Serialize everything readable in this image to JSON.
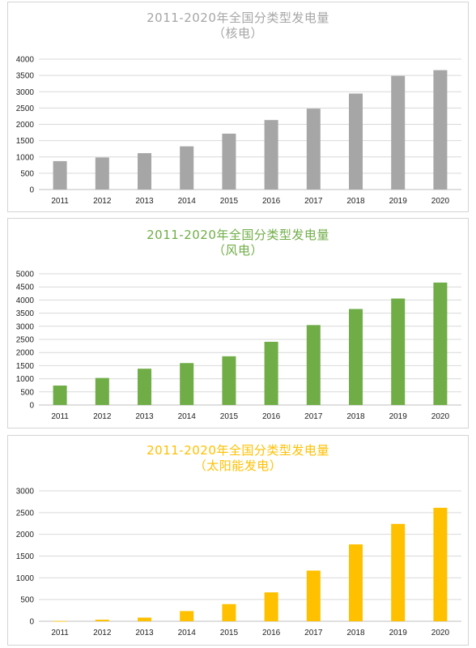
{
  "chart_data": [
    {
      "type": "bar",
      "title": "2011-2020年全国分类型发电量",
      "subtitle": "（核电）",
      "color": "#a6a6a6",
      "title_color": "#a6a6a6",
      "categories": [
        "2011",
        "2012",
        "2013",
        "2014",
        "2015",
        "2016",
        "2017",
        "2018",
        "2019",
        "2020"
      ],
      "values": [
        872,
        983,
        1116,
        1325,
        1714,
        2132,
        2481,
        2944,
        3487,
        3662
      ],
      "ylim": [
        0,
        4000
      ],
      "yticks": [
        0,
        500,
        1000,
        1500,
        2000,
        2500,
        3000,
        3500,
        4000
      ],
      "ytick_labels": [
        "0",
        "500",
        "1000",
        "1500",
        "2000",
        "2500",
        "3000",
        "3500",
        "4000"
      ],
      "grid": true,
      "xlabel": "",
      "ylabel": ""
    },
    {
      "type": "bar",
      "title": "2011-2020年全国分类型发电量",
      "subtitle": "（风电）",
      "color": "#70ad47",
      "title_color": "#70ad47",
      "categories": [
        "2011",
        "2012",
        "2013",
        "2014",
        "2015",
        "2016",
        "2017",
        "2018",
        "2019",
        "2020"
      ],
      "values": [
        741,
        1030,
        1383,
        1598,
        1856,
        2409,
        3046,
        3658,
        4057,
        4665
      ],
      "ylim": [
        0,
        5000
      ],
      "yticks": [
        0,
        500,
        1000,
        1500,
        2000,
        2500,
        3000,
        3500,
        4000,
        4500,
        5000
      ],
      "ytick_labels": [
        "0",
        "500",
        "1000",
        "1500",
        "2000",
        "2500",
        "3000",
        "3500",
        "4000",
        "4500",
        "5000"
      ],
      "grid": true,
      "xlabel": "",
      "ylabel": ""
    },
    {
      "type": "bar",
      "title": "2011-2020年全国分类型发电量",
      "subtitle": "（太阳能发电）",
      "color": "#ffc000",
      "title_color": "#ffc000",
      "categories": [
        "2011",
        "2012",
        "2013",
        "2014",
        "2015",
        "2016",
        "2017",
        "2018",
        "2019",
        "2020"
      ],
      "values": [
        6,
        36,
        84,
        235,
        395,
        665,
        1166,
        1769,
        2240,
        2611
      ],
      "ylim": [
        0,
        3000
      ],
      "yticks": [
        0,
        500,
        1000,
        1500,
        2000,
        2500,
        3000
      ],
      "ytick_labels": [
        "0",
        "500",
        "1000",
        "1500",
        "2000",
        "2500",
        "3000"
      ],
      "grid": true,
      "xlabel": "",
      "ylabel": ""
    }
  ]
}
